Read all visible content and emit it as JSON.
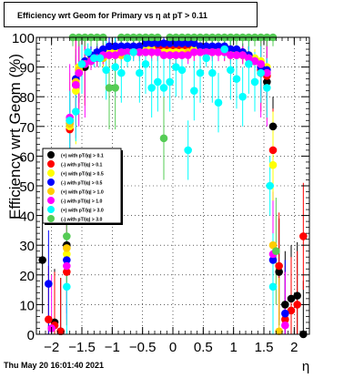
{
  "title": "Efficiency wrt Geom for Primary vs   η at pT > 0.11",
  "footer": "Thu May 20 16:01:40 2021",
  "chart_data": {
    "type": "scatter",
    "xlabel": "η",
    "ylabel": "Efficiency wrt Geom (%)",
    "xlim": [
      -2.25,
      2.25
    ],
    "ylim": [
      0,
      100
    ],
    "xticks": [
      -2,
      -1.5,
      -1,
      -0.5,
      0,
      0.5,
      1,
      1.5,
      2
    ],
    "xtick_labels": [
      "−2",
      "−1.5",
      "−1",
      "−0.5",
      "0",
      "0.5",
      "1",
      "1.5",
      "2"
    ],
    "yticks": [
      0,
      10,
      20,
      30,
      40,
      50,
      60,
      70,
      80,
      90,
      100
    ],
    "ytick_labels": [
      "0",
      "10",
      "20",
      "30",
      "40",
      "50",
      "60",
      "70",
      "80",
      "90",
      "100"
    ],
    "legend_position": "middle-left",
    "series": [
      {
        "name": "(+) with pT/|q| > 0.1",
        "color": "#000000",
        "x": [
          -2.15,
          -1.95,
          -1.85,
          -1.75,
          -1.7,
          -1.6,
          -1.55,
          -1.45,
          -1.35,
          -1.25,
          -1.15,
          -1.05,
          -0.95,
          -0.85,
          -0.75,
          -0.65,
          -0.55,
          -0.45,
          -0.35,
          -0.25,
          -0.15,
          -0.05,
          0.05,
          0.15,
          0.25,
          0.35,
          0.45,
          0.55,
          0.65,
          0.75,
          0.85,
          0.95,
          1.05,
          1.15,
          1.25,
          1.35,
          1.45,
          1.55,
          1.65,
          1.75,
          1.85,
          1.95,
          2.05,
          2.15
        ],
        "y": [
          25,
          4,
          1,
          30,
          72,
          84,
          88,
          90,
          92,
          93,
          94,
          95,
          96,
          96,
          96,
          96,
          96,
          97,
          97,
          97,
          97,
          97,
          97,
          97,
          97,
          97,
          97,
          96,
          96,
          96,
          96,
          95,
          95,
          94,
          94,
          92,
          88,
          85,
          70,
          21,
          10,
          12,
          13,
          0
        ]
      },
      {
        "name": "(-) with pT/|q| > 0.1",
        "color": "#ff0000",
        "x": [
          -2.05,
          -1.95,
          -1.85,
          -1.75,
          -1.7,
          -1.6,
          -1.55,
          -1.45,
          -1.35,
          -1.25,
          -1.15,
          -1.05,
          -0.95,
          -0.85,
          -0.75,
          -0.65,
          -0.55,
          -0.45,
          -0.35,
          -0.25,
          -0.15,
          -0.05,
          0.05,
          0.15,
          0.25,
          0.35,
          0.45,
          0.55,
          0.65,
          0.75,
          0.85,
          0.95,
          1.05,
          1.15,
          1.25,
          1.35,
          1.45,
          1.55,
          1.65,
          1.75,
          1.85,
          1.95,
          2.05,
          2.15
        ],
        "y": [
          5,
          3,
          1,
          21,
          69,
          86,
          89,
          91,
          93,
          94,
          95,
          95,
          96,
          96,
          96,
          96,
          97,
          97,
          97,
          97,
          97,
          97,
          97,
          97,
          97,
          97,
          97,
          96,
          96,
          96,
          96,
          96,
          95,
          95,
          94,
          92,
          89,
          87,
          62,
          23,
          5,
          8,
          10,
          33
        ]
      },
      {
        "name": "(+) with pT/|q| > 0.5",
        "color": "#ffff00",
        "x": [
          -1.75,
          -1.7,
          -1.6,
          -1.55,
          -1.45,
          -1.35,
          -1.25,
          -1.15,
          -1.05,
          -0.95,
          -0.85,
          -0.75,
          -0.65,
          -0.55,
          -0.45,
          -0.35,
          -0.25,
          -0.15,
          -0.05,
          0.05,
          0.15,
          0.25,
          0.35,
          0.45,
          0.55,
          0.65,
          0.75,
          0.85,
          0.95,
          1.05,
          1.15,
          1.25,
          1.35,
          1.45,
          1.55,
          1.65
        ],
        "y": [
          27,
          70,
          82,
          90,
          92,
          93,
          94,
          94,
          95,
          95,
          95,
          96,
          96,
          96,
          96,
          96,
          95,
          95,
          95,
          95,
          95,
          95,
          96,
          96,
          96,
          96,
          96,
          95,
          95,
          95,
          94,
          94,
          93,
          92,
          90,
          57
        ]
      },
      {
        "name": "(-) with pT/|q| > 0.5",
        "color": "#0000ff",
        "x": [
          -2.05,
          -1.75,
          -1.7,
          -1.6,
          -1.55,
          -1.45,
          -1.35,
          -1.25,
          -1.15,
          -1.05,
          -0.95,
          -0.85,
          -0.75,
          -0.65,
          -0.55,
          -0.45,
          -0.35,
          -0.25,
          -0.15,
          -0.05,
          0.05,
          0.15,
          0.25,
          0.35,
          0.45,
          0.55,
          0.65,
          0.75,
          0.85,
          0.95,
          1.05,
          1.15,
          1.25,
          1.35,
          1.45,
          1.55,
          1.65,
          1.85
        ],
        "y": [
          17,
          25,
          71,
          86,
          88,
          92,
          94,
          95,
          96,
          97,
          97,
          97,
          97,
          97,
          97,
          98,
          98,
          98,
          98,
          98,
          98,
          98,
          98,
          98,
          97,
          97,
          97,
          97,
          97,
          96,
          96,
          95,
          94,
          92,
          90,
          89,
          25,
          7
        ]
      },
      {
        "name": "(+) with pT/|q| > 1.0",
        "color": "#ffcc00",
        "x": [
          -1.75,
          -1.7,
          -1.6,
          -1.55,
          -1.45,
          -1.35,
          -1.25,
          -1.15,
          -1.05,
          -0.95,
          -0.85,
          -0.75,
          -0.65,
          -0.55,
          -0.45,
          -0.35,
          -0.25,
          -0.15,
          -0.05,
          0.05,
          0.15,
          0.25,
          0.35,
          0.45,
          0.55,
          0.65,
          0.75,
          0.85,
          0.95,
          1.05,
          1.15,
          1.25,
          1.35,
          1.45,
          1.55,
          1.65,
          1.75
        ],
        "y": [
          29,
          71,
          85,
          89,
          91,
          92,
          93,
          93,
          94,
          94,
          94,
          95,
          95,
          95,
          95,
          95,
          95,
          94,
          94,
          94,
          94,
          95,
          95,
          95,
          95,
          95,
          95,
          95,
          94,
          94,
          94,
          93,
          92,
          91,
          88,
          30,
          1
        ]
      },
      {
        "name": "(-) with pT/|q| > 1.0",
        "color": "#ff00ff",
        "x": [
          -2.0,
          -1.75,
          -1.7,
          -1.6,
          -1.55,
          -1.45,
          -1.35,
          -1.25,
          -1.15,
          -1.05,
          -0.95,
          -0.85,
          -0.75,
          -0.65,
          -0.55,
          -0.45,
          -0.35,
          -0.25,
          -0.15,
          -0.05,
          0.05,
          0.15,
          0.25,
          0.35,
          0.45,
          0.55,
          0.65,
          0.75,
          0.85,
          0.95,
          1.05,
          1.15,
          1.25,
          1.35,
          1.45,
          1.55,
          1.65,
          1.85
        ],
        "y": [
          2,
          23,
          73,
          84,
          88,
          91,
          92,
          93,
          94,
          94,
          94,
          95,
          95,
          95,
          95,
          95,
          95,
          95,
          94,
          94,
          94,
          94,
          94,
          95,
          95,
          95,
          95,
          95,
          95,
          94,
          94,
          94,
          93,
          92,
          91,
          88,
          27,
          3
        ]
      },
      {
        "name": "(+) with pT/|q| > 3.0",
        "color": "#00ffff",
        "x": [
          -1.75,
          -1.7,
          -1.6,
          -1.5,
          -1.4,
          -1.3,
          -1.2,
          -1.1,
          -0.95,
          -0.85,
          -0.75,
          -0.65,
          -0.55,
          -0.45,
          -0.35,
          -0.25,
          -0.15,
          -0.05,
          0.05,
          0.15,
          0.25,
          0.35,
          0.45,
          0.55,
          0.65,
          0.75,
          0.85,
          0.95,
          1.05,
          1.15,
          1.25,
          1.35,
          1.45,
          1.55,
          1.6,
          1.65
        ],
        "y": [
          16,
          72,
          75,
          91,
          95,
          93,
          93,
          89,
          90,
          88,
          93,
          95,
          88,
          91,
          83,
          85,
          83,
          85,
          90,
          89,
          62,
          82,
          88,
          93,
          88,
          78,
          96,
          89,
          86,
          80,
          91,
          85,
          88,
          83,
          50,
          16
        ]
      },
      {
        "name": "(-) with pT/|q| > 3.0",
        "color": "#55cc55",
        "x": [
          -1.75,
          -1.65,
          -1.55,
          -1.45,
          -1.35,
          -1.25,
          -1.15,
          -1.05,
          -0.95,
          -0.85,
          -0.75,
          -0.65,
          -0.55,
          -0.45,
          -0.35,
          -0.25,
          -0.15,
          -0.05,
          0.05,
          0.15,
          0.25,
          0.35,
          0.45,
          0.55,
          0.65,
          0.75,
          0.85,
          0.95,
          1.05,
          1.15,
          1.25,
          1.35,
          1.45,
          1.55,
          1.65,
          1.7
        ],
        "y": [
          33,
          100,
          100,
          100,
          100,
          100,
          100,
          83,
          83,
          100,
          100,
          100,
          100,
          100,
          100,
          100,
          66,
          100,
          100,
          100,
          100,
          100,
          100,
          100,
          100,
          100,
          100,
          100,
          100,
          100,
          100,
          100,
          100,
          100,
          100,
          28
        ]
      }
    ]
  }
}
